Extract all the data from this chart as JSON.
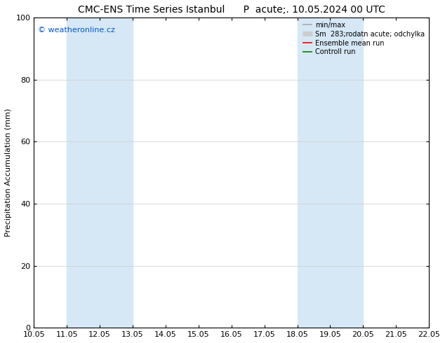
{
  "title": "CMC-ENS Time Series Istanbul      P  acute;. 10.05.2024 00 UTC",
  "ylabel": "Precipitation Accumulation (mm)",
  "xlim": [
    10.05,
    22.05
  ],
  "ylim": [
    0,
    100
  ],
  "yticks": [
    0,
    20,
    40,
    60,
    80,
    100
  ],
  "xtick_labels": [
    "10.05",
    "11.05",
    "12.05",
    "13.05",
    "14.05",
    "15.05",
    "16.05",
    "17.05",
    "18.05",
    "19.05",
    "20.05",
    "21.05",
    "22.05"
  ],
  "xtick_values": [
    10.05,
    11.05,
    12.05,
    13.05,
    14.05,
    15.05,
    16.05,
    17.05,
    18.05,
    19.05,
    20.05,
    21.05,
    22.05
  ],
  "shaded_regions": [
    {
      "x_start": 11.05,
      "x_end": 13.05,
      "color": "#d6e8f5"
    },
    {
      "x_start": 18.05,
      "x_end": 20.05,
      "color": "#d6e8f5"
    }
  ],
  "watermark_text": "© weatheronline.cz",
  "watermark_color": "#0055cc",
  "legend_entries": [
    {
      "label": "min/max",
      "color": "#aaaaaa",
      "lw": 1.2,
      "linestyle": "-"
    },
    {
      "label": "Sm  283;rodatn acute; odchylka",
      "color": "#cccccc",
      "lw": 5,
      "linestyle": "-"
    },
    {
      "label": "Ensemble mean run",
      "color": "#ff0000",
      "lw": 1.2,
      "linestyle": "-"
    },
    {
      "label": "Controll run",
      "color": "#008000",
      "lw": 1.2,
      "linestyle": "-"
    }
  ],
  "bg_color": "#ffffff",
  "grid_color": "#cccccc",
  "title_fontsize": 10,
  "label_fontsize": 8,
  "tick_fontsize": 8,
  "legend_fontsize": 7,
  "watermark_fontsize": 8
}
